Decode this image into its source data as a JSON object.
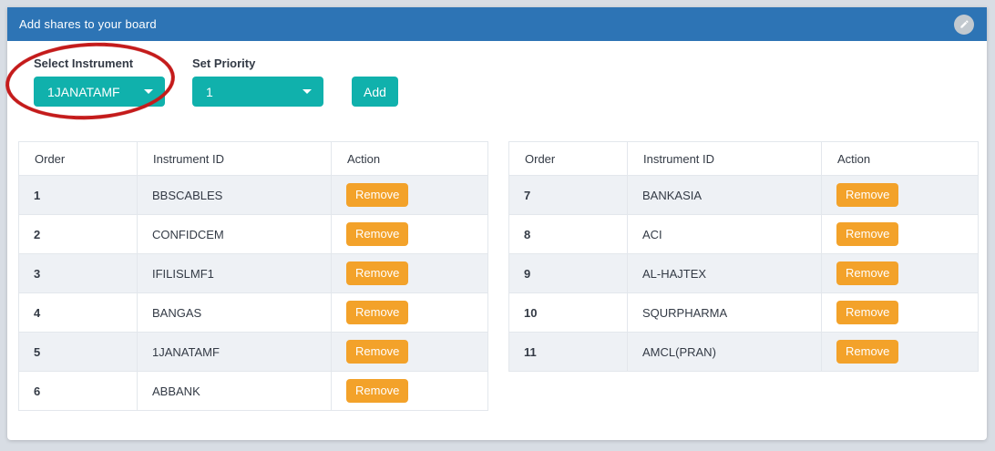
{
  "header": {
    "title": "Add shares to your board",
    "edit_icon": "pencil-icon"
  },
  "form": {
    "instrument_label": "Select Instrument",
    "instrument_value": "1JANATAMF",
    "priority_label": "Set Priority",
    "priority_value": "1",
    "add_label": "Add"
  },
  "annotation": {
    "shape": "hand-drawn-ellipse",
    "target": "select-instrument-dropdown",
    "color": "#c41b1b"
  },
  "table_headers": [
    "Order",
    "Instrument ID",
    "Action"
  ],
  "remove_label": "Remove",
  "tables": [
    {
      "rows": [
        {
          "order": "1",
          "instrument": "BBSCABLES"
        },
        {
          "order": "2",
          "instrument": "CONFIDCEM"
        },
        {
          "order": "3",
          "instrument": "IFILISLMF1"
        },
        {
          "order": "4",
          "instrument": "BANGAS"
        },
        {
          "order": "5",
          "instrument": "1JANATAMF"
        },
        {
          "order": "6",
          "instrument": "ABBANK"
        }
      ]
    },
    {
      "rows": [
        {
          "order": "7",
          "instrument": "BANKASIA"
        },
        {
          "order": "8",
          "instrument": "ACI"
        },
        {
          "order": "9",
          "instrument": "AL-HAJTEX"
        },
        {
          "order": "10",
          "instrument": "SQURPHARMA"
        },
        {
          "order": "11",
          "instrument": "AMCL(PRAN)"
        }
      ]
    }
  ],
  "colors": {
    "header_blue": "#2d74b5",
    "accent_teal": "#10b1ac",
    "remove_orange": "#f3a22a",
    "annotation_red": "#c41b1b",
    "row_stripe": "#eef1f5",
    "page_background": "#d8dde4"
  }
}
